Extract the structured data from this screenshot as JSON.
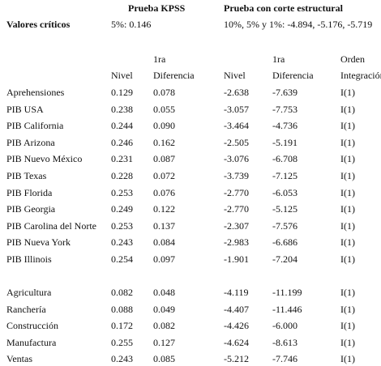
{
  "header": {
    "kpss": "Prueba KPSS",
    "break": "Prueba con corte estructural",
    "critical_label": "Valores críticos",
    "critical_kpss": "5%: 0.146",
    "critical_break": "10%, 5% y 1%: -4.894, -5.176, -5.719"
  },
  "columns": {
    "kpss_level": "Nivel",
    "kpss_diff_top": "1ra",
    "kpss_diff": "Diferencia",
    "break_level": "Nivel",
    "break_diff_top": "1ra",
    "break_diff": "Diferencia",
    "order_top": "Orden",
    "order": "Integración"
  },
  "table": {
    "groups": [
      {
        "rows": [
          [
            "Aprehensiones",
            "0.129",
            "0.078",
            "-2.638",
            "-7.639",
            "I(1)"
          ],
          [
            "PIB USA",
            "0.238",
            "0.055",
            "-3.057",
            "-7.753",
            "I(1)"
          ],
          [
            "PIB California",
            "0.244",
            "0.090",
            "-3.464",
            "-4.736",
            "I(1)"
          ],
          [
            "PIB Arizona",
            "0.246",
            "0.162",
            "-2.505",
            "-5.191",
            "I(1)"
          ],
          [
            "PIB Nuevo México",
            "0.231",
            "0.087",
            "-3.076",
            "-6.708",
            "I(1)"
          ],
          [
            "PIB Texas",
            "0.228",
            "0.072",
            "-3.739",
            "-7.125",
            "I(1)"
          ],
          [
            "PIB Florida",
            "0.253",
            "0.076",
            "-2.770",
            "-6.053",
            "I(1)"
          ],
          [
            "PIB Georgia",
            "0.249",
            "0.122",
            "-2.770",
            "-5.125",
            "I(1)"
          ],
          [
            "PIB Carolina del Norte",
            "0.253",
            "0.137",
            "-2.307",
            "-7.576",
            "I(1)"
          ],
          [
            "PIB Nueva York",
            "0.243",
            "0.084",
            "-2.983",
            "-6.686",
            "I(1)"
          ],
          [
            "PIB Illinois",
            "0.254",
            "0.097",
            "-1.901",
            "-7.204",
            "I(1)"
          ]
        ]
      },
      {
        "rows": [
          [
            "Agricultura",
            "0.082",
            "0.048",
            "-4.119",
            "-11.199",
            "I(1)"
          ],
          [
            "Ranchería",
            "0.088",
            "0.049",
            "-4.407",
            "-11.446",
            "I(1)"
          ],
          [
            "Construcción",
            "0.172",
            "0.082",
            "-4.426",
            "-6.000",
            "I(1)"
          ],
          [
            "Manufactura",
            "0.255",
            "0.127",
            "-4.624",
            "-8.613",
            "I(1)"
          ],
          [
            "Ventas",
            "0.243",
            "0.085",
            "-5.212",
            "-7.746",
            "I(1)"
          ]
        ]
      }
    ]
  }
}
